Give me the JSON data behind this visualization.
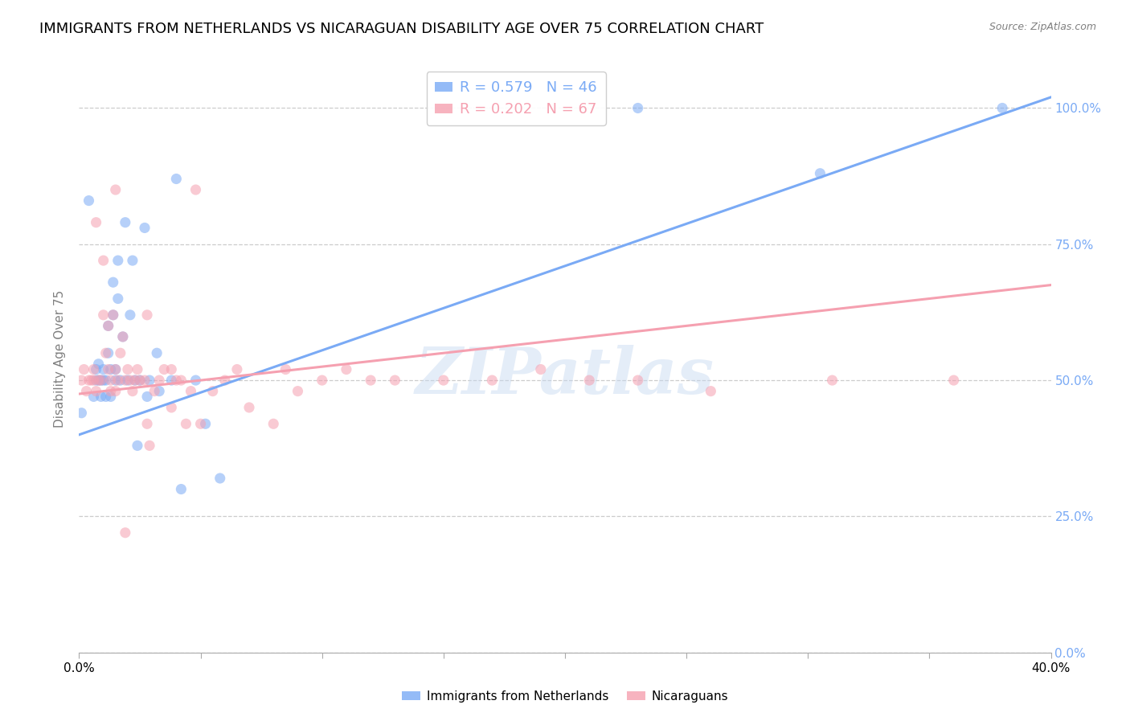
{
  "title": "IMMIGRANTS FROM NETHERLANDS VS NICARAGUAN DISABILITY AGE OVER 75 CORRELATION CHART",
  "source": "Source: ZipAtlas.com",
  "ylabel": "Disability Age Over 75",
  "legend1_label": "R = 0.579   N = 46",
  "legend2_label": "R = 0.202   N = 67",
  "legend1_color": "#7aaaf5",
  "legend2_color": "#f5a0b0",
  "watermark": "ZIPatlas",
  "blue_scatter_x": [
    0.001,
    0.004,
    0.006,
    0.007,
    0.007,
    0.008,
    0.008,
    0.009,
    0.009,
    0.01,
    0.01,
    0.011,
    0.011,
    0.012,
    0.012,
    0.013,
    0.013,
    0.014,
    0.014,
    0.015,
    0.015,
    0.016,
    0.016,
    0.017,
    0.018,
    0.019,
    0.02,
    0.021,
    0.022,
    0.023,
    0.024,
    0.025,
    0.027,
    0.028,
    0.029,
    0.032,
    0.033,
    0.038,
    0.04,
    0.042,
    0.048,
    0.052,
    0.058,
    0.23,
    0.305,
    0.38
  ],
  "blue_scatter_y": [
    0.44,
    0.83,
    0.47,
    0.5,
    0.52,
    0.5,
    0.53,
    0.5,
    0.47,
    0.5,
    0.52,
    0.5,
    0.47,
    0.55,
    0.6,
    0.52,
    0.47,
    0.68,
    0.62,
    0.52,
    0.5,
    0.72,
    0.65,
    0.5,
    0.58,
    0.79,
    0.5,
    0.62,
    0.72,
    0.5,
    0.38,
    0.5,
    0.78,
    0.47,
    0.5,
    0.55,
    0.48,
    0.5,
    0.87,
    0.3,
    0.5,
    0.42,
    0.32,
    1.0,
    0.88,
    1.0
  ],
  "pink_scatter_x": [
    0.001,
    0.002,
    0.003,
    0.004,
    0.005,
    0.006,
    0.006,
    0.007,
    0.008,
    0.009,
    0.01,
    0.011,
    0.012,
    0.012,
    0.013,
    0.013,
    0.014,
    0.015,
    0.015,
    0.016,
    0.017,
    0.018,
    0.019,
    0.02,
    0.021,
    0.022,
    0.023,
    0.024,
    0.025,
    0.027,
    0.028,
    0.029,
    0.031,
    0.033,
    0.035,
    0.038,
    0.04,
    0.042,
    0.044,
    0.046,
    0.05,
    0.055,
    0.06,
    0.065,
    0.07,
    0.08,
    0.085,
    0.09,
    0.1,
    0.11,
    0.12,
    0.13,
    0.15,
    0.17,
    0.19,
    0.21,
    0.23,
    0.26,
    0.31,
    0.36,
    0.007,
    0.01,
    0.015,
    0.019,
    0.028,
    0.038,
    0.048
  ],
  "pink_scatter_y": [
    0.5,
    0.52,
    0.48,
    0.5,
    0.5,
    0.52,
    0.5,
    0.48,
    0.5,
    0.5,
    0.62,
    0.55,
    0.6,
    0.52,
    0.48,
    0.5,
    0.62,
    0.52,
    0.48,
    0.5,
    0.55,
    0.58,
    0.5,
    0.52,
    0.5,
    0.48,
    0.5,
    0.52,
    0.5,
    0.5,
    0.42,
    0.38,
    0.48,
    0.5,
    0.52,
    0.45,
    0.5,
    0.5,
    0.42,
    0.48,
    0.42,
    0.48,
    0.5,
    0.52,
    0.45,
    0.42,
    0.52,
    0.48,
    0.5,
    0.52,
    0.5,
    0.5,
    0.5,
    0.5,
    0.52,
    0.5,
    0.5,
    0.48,
    0.5,
    0.5,
    0.79,
    0.72,
    0.85,
    0.22,
    0.62,
    0.52,
    0.85
  ],
  "xlim": [
    0.0,
    0.4
  ],
  "ylim": [
    0.0,
    1.08
  ],
  "blue_line_x": [
    0.0,
    0.4
  ],
  "blue_line_y": [
    0.4,
    1.02
  ],
  "pink_line_x": [
    0.0,
    0.4
  ],
  "pink_line_y": [
    0.475,
    0.675
  ],
  "bg_color": "#ffffff",
  "scatter_alpha": 0.55,
  "scatter_size": 90,
  "grid_color": "#cccccc",
  "title_fontsize": 13,
  "axis_label_fontsize": 11,
  "ytick_vals": [
    0.0,
    0.25,
    0.5,
    0.75,
    1.0
  ],
  "ytick_labels_right": [
    "0.0%",
    "25.0%",
    "50.0%",
    "75.0%",
    "100.0%"
  ],
  "xtick_vals": [
    0.0,
    0.05,
    0.1,
    0.15,
    0.2,
    0.25,
    0.3,
    0.35,
    0.4
  ],
  "xtick_labels_ends": [
    "0.0%",
    "",
    "",
    "",
    "",
    "",
    "",
    "",
    "40.0%"
  ]
}
